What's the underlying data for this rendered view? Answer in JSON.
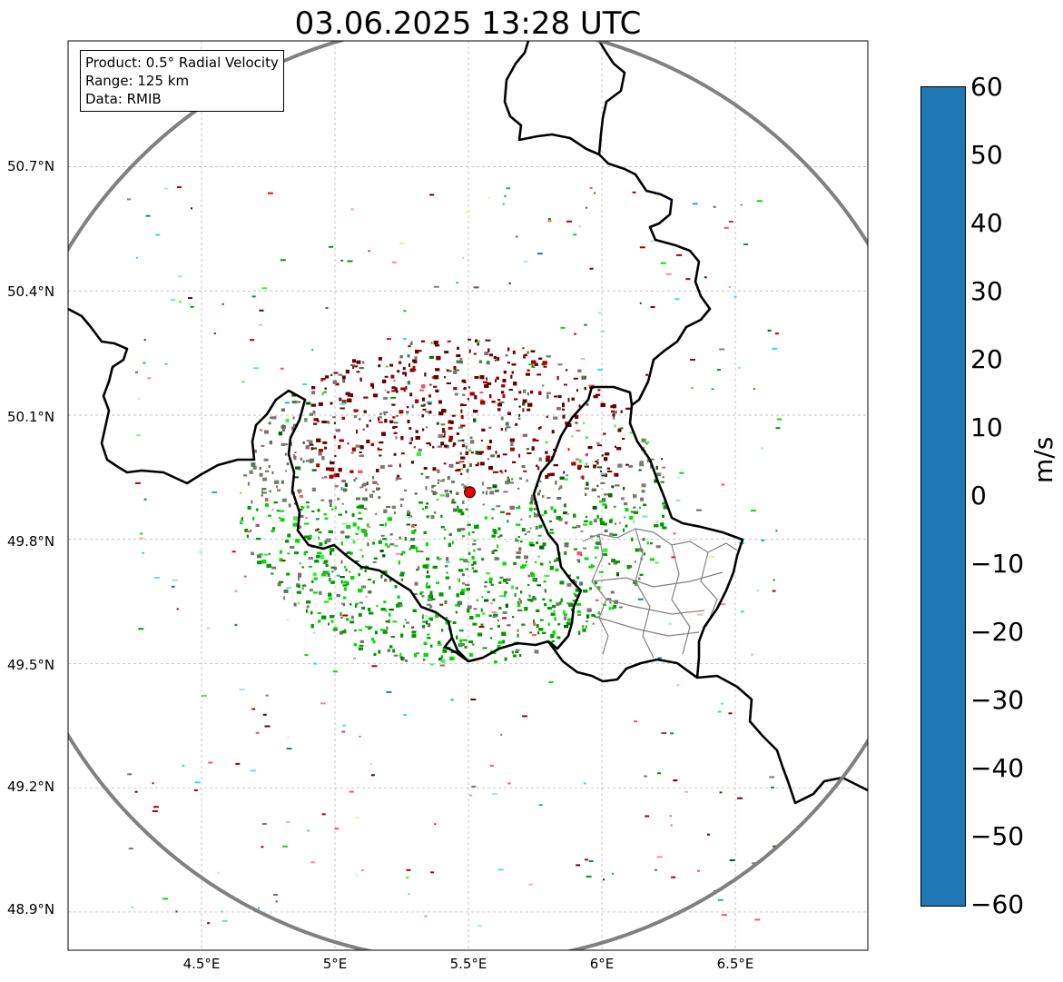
{
  "title": "03.06.2025 13:28 UTC",
  "info": {
    "product": "Product: 0.5° Radial Velocity",
    "range": "Range: 125 km",
    "data": "Data: RMIB"
  },
  "axes": {
    "lat_ticks": [
      "50.7°N",
      "50.4°N",
      "50.1°N",
      "49.8°N",
      "49.5°N",
      "49.2°N",
      "48.9°N"
    ],
    "lon_ticks": [
      "4.5°E",
      "5°E",
      "5.5°E",
      "6°E",
      "6.5°E"
    ],
    "lat_values": [
      50.7,
      50.4,
      50.1,
      49.8,
      49.5,
      49.2,
      48.9
    ],
    "lon_values": [
      4.5,
      5.0,
      5.5,
      6.0,
      6.5
    ],
    "lon_range": [
      4.0,
      7.0
    ],
    "lat_range": [
      48.8,
      50.98
    ]
  },
  "radar": {
    "lon": 5.505,
    "lat": 49.914,
    "range_km": 125
  },
  "colorbar": {
    "label": "m/s",
    "min": -60,
    "max": 60,
    "ticks": [
      "60",
      "50",
      "40",
      "30",
      "20",
      "10",
      "0",
      "−10",
      "−20",
      "−30",
      "−40",
      "−50",
      "−60"
    ],
    "tick_values": [
      60,
      50,
      40,
      30,
      20,
      10,
      0,
      -10,
      -20,
      -30,
      -40,
      -50,
      -60
    ],
    "stops": [
      {
        "v": -60,
        "c": "#1f77b4"
      },
      {
        "v": -56,
        "c": "#26a9d0"
      },
      {
        "v": -52,
        "c": "#2ee0e0"
      },
      {
        "v": -46,
        "c": "#5fe3e3"
      },
      {
        "v": -40,
        "c": "#9fe8ea"
      },
      {
        "v": -34,
        "c": "#bff0f0"
      },
      {
        "v": -32,
        "c": "#90f0a0"
      },
      {
        "v": -28,
        "c": "#40f040"
      },
      {
        "v": -22,
        "c": "#00dd00"
      },
      {
        "v": -14,
        "c": "#009900"
      },
      {
        "v": -6,
        "c": "#006600"
      },
      {
        "v": -3,
        "c": "#557755"
      },
      {
        "v": 0,
        "c": "#7a8070"
      },
      {
        "v": 3,
        "c": "#8a6a74"
      },
      {
        "v": 8,
        "c": "#8b4a50"
      },
      {
        "v": 10,
        "c": "#6b0000"
      },
      {
        "v": 18,
        "c": "#aa0000"
      },
      {
        "v": 28,
        "c": "#ff0000"
      },
      {
        "v": 30,
        "c": "#ff5060"
      },
      {
        "v": 38,
        "c": "#ff80c0"
      },
      {
        "v": 44,
        "c": "#ffb0b0"
      },
      {
        "v": 48,
        "c": "#ffe8a0"
      },
      {
        "v": 54,
        "c": "#ffc080"
      },
      {
        "v": 60,
        "c": "#ff9955"
      }
    ]
  },
  "colors": {
    "range_ring": "#808080",
    "border": "#000000",
    "grid": "#b0b0b0",
    "radar_marker": "#ee0000",
    "outbound_core": "#7a0000",
    "inbound_core": "#007700",
    "near_zero": "#6e7d68"
  }
}
